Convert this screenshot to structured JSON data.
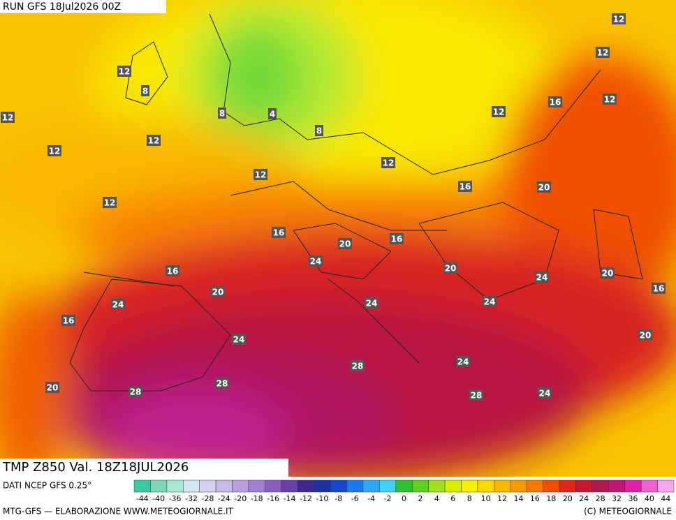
{
  "header": {
    "run": "RUN GFS 18Jul2026 00Z"
  },
  "footer": {
    "field": "TMP Z850 Val. 18Z18JUL2026",
    "source": "DATI NCEP GFS 0.25°",
    "credit": "MTG-GFS — ELABORAZIONE WWW.METEOGIORNALE.IT",
    "copyright": "(C) METEOGIORNALE"
  },
  "legend": {
    "labels": [
      "-44",
      "-40",
      "-36",
      "-32",
      "-28",
      "-24",
      "-20",
      "-18",
      "-16",
      "-14",
      "-12",
      "-10",
      "-8",
      "-6",
      "-4",
      "-2",
      "0",
      "2",
      "4",
      "6",
      "8",
      "10",
      "12",
      "14",
      "16",
      "18",
      "20",
      "24",
      "28",
      "32",
      "36",
      "40",
      "44"
    ],
    "colors": [
      "#3cc8a0",
      "#7ad8b8",
      "#a8e8d0",
      "#d0e8f0",
      "#d8d0f0",
      "#c8b8e8",
      "#b8a0e0",
      "#a080d0",
      "#8860c0",
      "#6840a8",
      "#402890",
      "#2030a0",
      "#1848d0",
      "#2078f0",
      "#30a8f8",
      "#40d0f8",
      "#30c030",
      "#60d020",
      "#a0e020",
      "#d8f000",
      "#f8f000",
      "#f8d800",
      "#f8b800",
      "#f89800",
      "#f87800",
      "#f05000",
      "#e02818",
      "#c81830",
      "#b01850",
      "#c01878",
      "#e020a8",
      "#f060d0",
      "#f8a8f0"
    ]
  },
  "map": {
    "contour_labels": [
      "12",
      "12",
      "12",
      "8",
      "12",
      "8",
      "4",
      "8",
      "12",
      "16",
      "12",
      "12",
      "12",
      "12",
      "12",
      "16",
      "20",
      "12",
      "16",
      "20",
      "16",
      "24",
      "16",
      "20",
      "24",
      "20",
      "16",
      "20",
      "24",
      "24",
      "24",
      "16",
      "20",
      "24",
      "28",
      "24",
      "28",
      "20",
      "28",
      "28",
      "24"
    ]
  }
}
